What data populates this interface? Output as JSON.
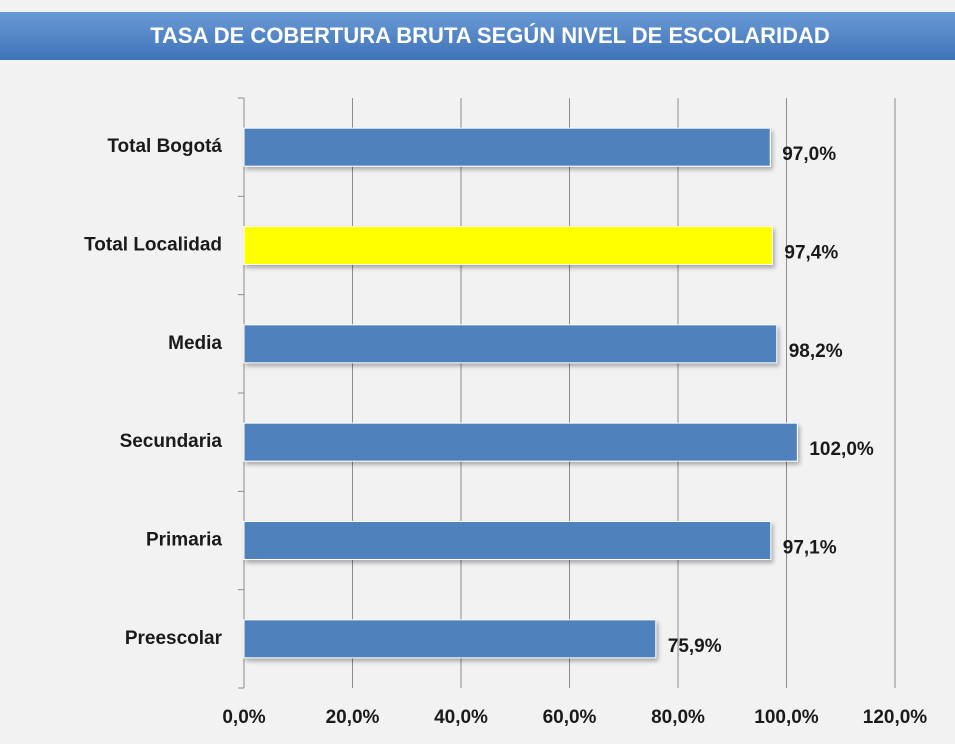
{
  "chart_data": {
    "type": "hbar",
    "title": "TASA DE COBERTURA  BRUTA SEGÚN NIVEL DE ESCOLARIDAD",
    "categories": [
      "Total Bogotá",
      "Total Localidad",
      "Media",
      "Secundaria",
      "Primaria",
      "Preescolar"
    ],
    "values": [
      97.0,
      97.4,
      98.2,
      102.0,
      97.1,
      75.9
    ],
    "value_labels": [
      "97,0%",
      "97,4%",
      "98,2%",
      "102,0%",
      "97,1%",
      "75,9%"
    ],
    "colors": [
      "#4f81bd",
      "#ffff00",
      "#4f81bd",
      "#4f81bd",
      "#4f81bd",
      "#4f81bd"
    ],
    "xlim": [
      0,
      120
    ],
    "xticks": [
      {
        "value": 0,
        "label": "0,0%"
      },
      {
        "value": 20,
        "label": "20,0%"
      },
      {
        "value": 40,
        "label": "40,0%"
      },
      {
        "value": 60,
        "label": "60,0%"
      },
      {
        "value": 80,
        "label": "80,0%"
      },
      {
        "value": 100,
        "label": "100,0%"
      },
      {
        "value": 120,
        "label": "120,0%"
      }
    ],
    "grid": true
  }
}
